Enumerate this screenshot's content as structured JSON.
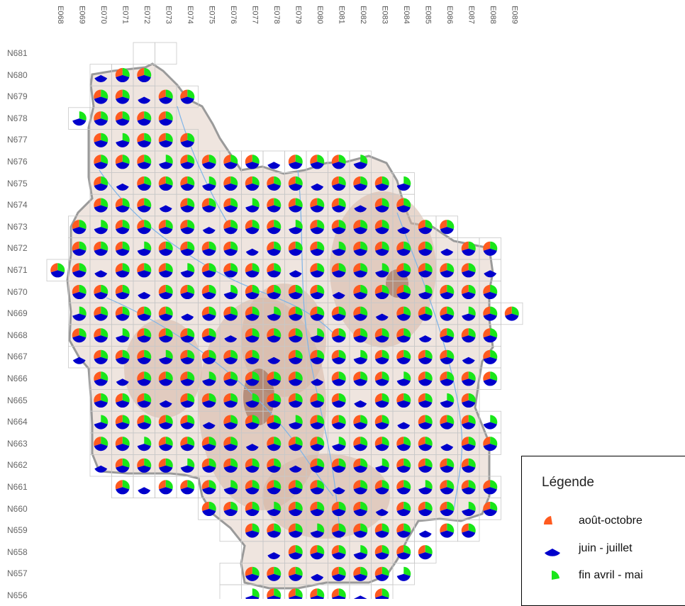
{
  "colors": {
    "aout_octobre": "#ff5a1f",
    "juin_juillet": "#0000cc",
    "fin_avril_mai": "#19e619",
    "relief_light": "#efe5df",
    "relief_mid": "#d5b6a4",
    "relief_dark": "#9a6850",
    "border": "#9a9a9a",
    "grid": "#c8c8c8",
    "rivers": "#7eb4e8"
  },
  "columns": [
    "E068",
    "E069",
    "E070",
    "E071",
    "E072",
    "E073",
    "E074",
    "E075",
    "E076",
    "E077",
    "E078",
    "E079",
    "E080",
    "E081",
    "E082",
    "E083",
    "E084",
    "E085",
    "E086",
    "E087",
    "E088",
    "E089"
  ],
  "rows": [
    "N681",
    "N680",
    "N679",
    "N678",
    "N677",
    "N676",
    "N675",
    "N674",
    "N673",
    "N672",
    "N671",
    "N670",
    "N669",
    "N668",
    "N667",
    "N666",
    "N665",
    "N664",
    "N663",
    "N662",
    "N661",
    "N660",
    "N659",
    "N658",
    "N657",
    "N656"
  ],
  "row_spans": [
    [
      4,
      5
    ],
    [
      2,
      4
    ],
    [
      2,
      6
    ],
    [
      1,
      5
    ],
    [
      2,
      6
    ],
    [
      2,
      14
    ],
    [
      2,
      16
    ],
    [
      2,
      16
    ],
    [
      1,
      18
    ],
    [
      1,
      20
    ],
    [
      0,
      20
    ],
    [
      1,
      20
    ],
    [
      1,
      21
    ],
    [
      1,
      20
    ],
    [
      1,
      20
    ],
    [
      2,
      20
    ],
    [
      2,
      19
    ],
    [
      2,
      20
    ],
    [
      2,
      20
    ],
    [
      2,
      19
    ],
    [
      3,
      20
    ],
    [
      7,
      20
    ],
    [
      8,
      19
    ],
    [
      9,
      17
    ],
    [
      8,
      16
    ],
    [
      8,
      15
    ]
  ],
  "legend": {
    "title": "Légende",
    "items": [
      {
        "label": "août-octobre",
        "color": "#ff5a1f",
        "icon": "sector-top-left"
      },
      {
        "label": "juin - juillet",
        "color": "#0000cc",
        "icon": "sector-bottom"
      },
      {
        "label": "fin avril - mai",
        "color": "#19e619",
        "icon": "sector-top-right"
      }
    ]
  }
}
